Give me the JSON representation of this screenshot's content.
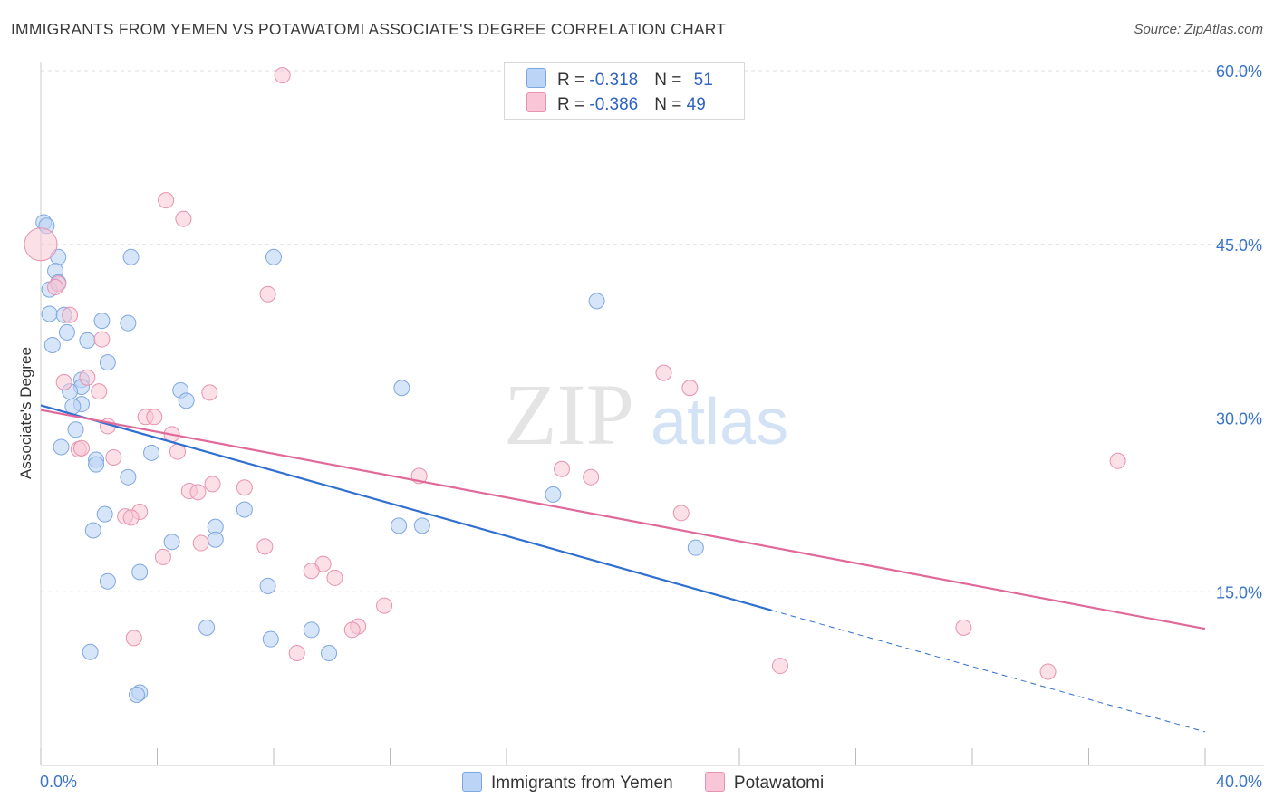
{
  "title": "IMMIGRANTS FROM YEMEN VS POTAWATOMI ASSOCIATE'S DEGREE CORRELATION CHART",
  "source": "Source: ZipAtlas.com",
  "watermark": {
    "zip": "ZIP",
    "atlas": "atlas"
  },
  "legend": {
    "series": [
      {
        "r_label": "R = ",
        "r_value": "-0.318",
        "n_label": "N = ",
        "n_value": "51"
      },
      {
        "r_label": "R = ",
        "r_value": "-0.386",
        "n_label": "N = ",
        "n_value": "49"
      }
    ]
  },
  "bottom_legend": {
    "items": [
      "Immigrants from Yemen",
      "Potawatomi"
    ]
  },
  "chart_data": {
    "type": "scatter",
    "title": "IMMIGRANTS FROM YEMEN VS POTAWATOMI ASSOCIATE'S DEGREE CORRELATION CHART",
    "xlabel": "",
    "ylabel": "Associate's Degree",
    "xlim": [
      0,
      40
    ],
    "ylim": [
      0,
      60
    ],
    "x_tick_labels": [
      "0.0%",
      "40.0%"
    ],
    "y_ticks": [
      15,
      30,
      45,
      60
    ],
    "y_tick_labels": [
      "15.0%",
      "30.0%",
      "45.0%",
      "60.0%"
    ],
    "colors": {
      "yemen_fill": "#bcd4f5",
      "yemen_stroke": "#7ea7e0",
      "yemen_line": "#2f6fcf",
      "potawatomi_fill": "#f8c6d6",
      "potawatomi_stroke": "#e792ae",
      "potawatomi_line": "#e0699a",
      "grid": "#dddddd",
      "axis_text": "#3a74c9"
    },
    "series": [
      {
        "name": "Immigrants from Yemen",
        "r": -0.318,
        "n": 51,
        "trend": {
          "x": [
            0,
            25.1
          ],
          "y": [
            31.1,
            13.4
          ],
          "dashed_to": [
            40,
            2.9
          ]
        },
        "points": [
          [
            0.1,
            46.9
          ],
          [
            0.2,
            46.6
          ],
          [
            0.6,
            43.9
          ],
          [
            0.5,
            42.7
          ],
          [
            0.6,
            41.7
          ],
          [
            0.3,
            41.1
          ],
          [
            0.3,
            39.0
          ],
          [
            0.8,
            38.9
          ],
          [
            2.1,
            38.4
          ],
          [
            3.0,
            38.2
          ],
          [
            0.9,
            37.4
          ],
          [
            1.6,
            36.7
          ],
          [
            0.4,
            36.3
          ],
          [
            2.3,
            34.8
          ],
          [
            3.1,
            43.9
          ],
          [
            8.0,
            43.9
          ],
          [
            19.1,
            40.1
          ],
          [
            1.4,
            33.3
          ],
          [
            1.4,
            32.7
          ],
          [
            1.0,
            32.3
          ],
          [
            4.8,
            32.4
          ],
          [
            12.4,
            32.6
          ],
          [
            5.0,
            31.5
          ],
          [
            1.4,
            31.2
          ],
          [
            1.1,
            31.0
          ],
          [
            1.2,
            29.0
          ],
          [
            0.7,
            27.5
          ],
          [
            3.8,
            27.0
          ],
          [
            1.9,
            26.4
          ],
          [
            1.9,
            26.0
          ],
          [
            3.0,
            24.9
          ],
          [
            17.6,
            23.4
          ],
          [
            7.0,
            22.1
          ],
          [
            2.2,
            21.7
          ],
          [
            1.8,
            20.3
          ],
          [
            6.0,
            20.6
          ],
          [
            12.3,
            20.7
          ],
          [
            13.1,
            20.7
          ],
          [
            4.5,
            19.3
          ],
          [
            6.0,
            19.5
          ],
          [
            22.5,
            18.8
          ],
          [
            3.4,
            16.7
          ],
          [
            2.3,
            15.9
          ],
          [
            7.8,
            15.5
          ],
          [
            5.7,
            11.9
          ],
          [
            9.3,
            11.7
          ],
          [
            7.9,
            10.9
          ],
          [
            1.7,
            9.8
          ],
          [
            9.9,
            9.7
          ],
          [
            3.4,
            6.3
          ],
          [
            3.3,
            6.1
          ]
        ]
      },
      {
        "name": "Potawatomi",
        "r": -0.386,
        "n": 49,
        "trend": {
          "x": [
            0,
            40
          ],
          "y": [
            30.7,
            11.8
          ]
        },
        "points": [
          [
            0.0,
            45.0
          ],
          [
            8.3,
            59.6
          ],
          [
            4.3,
            48.8
          ],
          [
            4.9,
            47.2
          ],
          [
            0.6,
            41.6
          ],
          [
            7.8,
            40.7
          ],
          [
            1.0,
            38.9
          ],
          [
            2.1,
            36.8
          ],
          [
            0.8,
            33.1
          ],
          [
            1.6,
            33.5
          ],
          [
            2.0,
            32.3
          ],
          [
            5.8,
            32.2
          ],
          [
            3.6,
            30.1
          ],
          [
            3.9,
            30.1
          ],
          [
            2.3,
            29.3
          ],
          [
            4.5,
            28.6
          ],
          [
            1.3,
            27.3
          ],
          [
            1.4,
            27.4
          ],
          [
            4.7,
            27.1
          ],
          [
            2.5,
            26.6
          ],
          [
            21.4,
            33.9
          ],
          [
            22.3,
            32.6
          ],
          [
            17.9,
            25.6
          ],
          [
            13.0,
            25.0
          ],
          [
            18.9,
            24.9
          ],
          [
            37.0,
            26.3
          ],
          [
            5.9,
            24.3
          ],
          [
            7.0,
            24.0
          ],
          [
            5.1,
            23.7
          ],
          [
            5.4,
            23.6
          ],
          [
            22.0,
            21.8
          ],
          [
            3.4,
            21.9
          ],
          [
            2.9,
            21.5
          ],
          [
            3.1,
            21.4
          ],
          [
            5.5,
            19.2
          ],
          [
            7.7,
            18.9
          ],
          [
            4.2,
            18.0
          ],
          [
            9.7,
            17.4
          ],
          [
            9.3,
            16.8
          ],
          [
            10.1,
            16.2
          ],
          [
            11.8,
            13.8
          ],
          [
            10.9,
            12.0
          ],
          [
            10.7,
            11.7
          ],
          [
            31.7,
            11.9
          ],
          [
            3.2,
            11.0
          ],
          [
            8.8,
            9.7
          ],
          [
            25.4,
            8.6
          ],
          [
            34.6,
            8.1
          ],
          [
            0.5,
            41.3
          ]
        ]
      }
    ]
  }
}
